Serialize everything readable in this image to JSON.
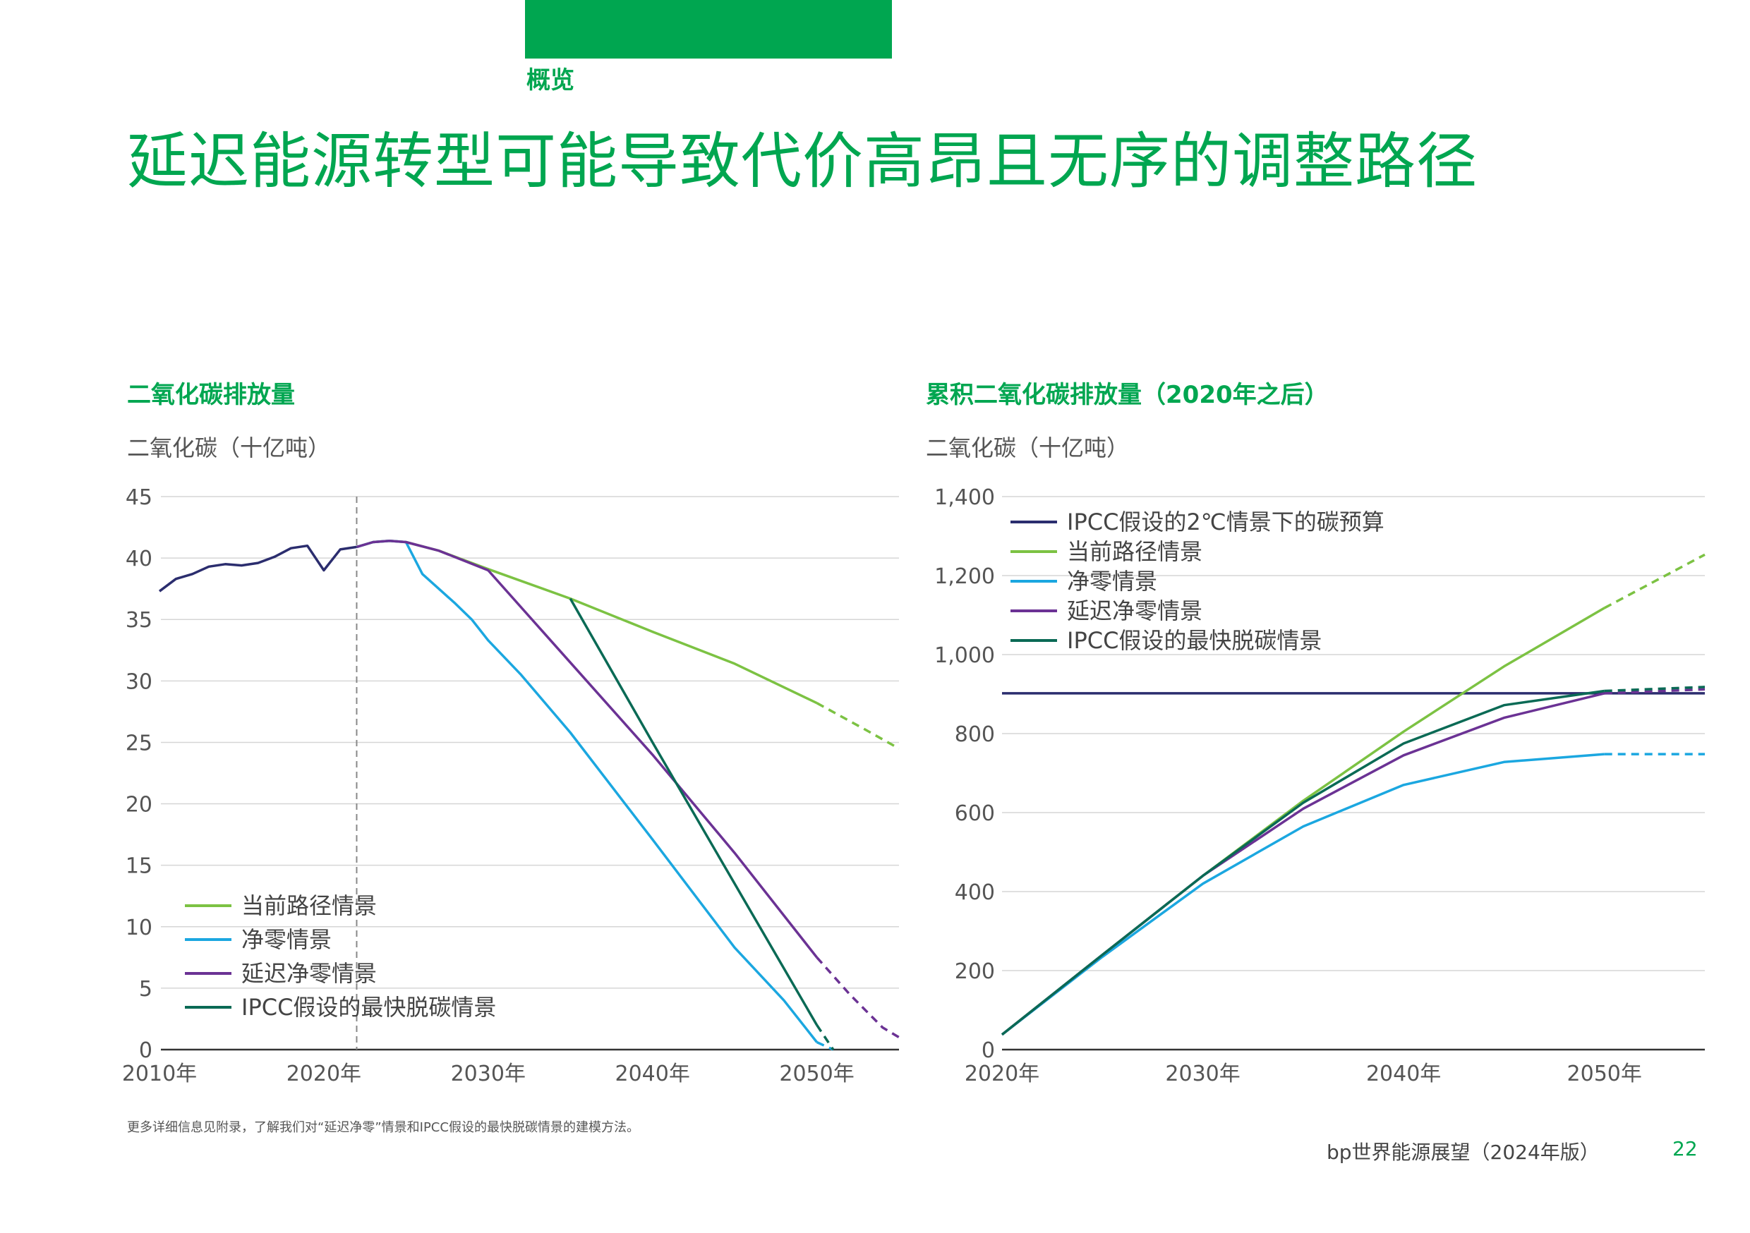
{
  "header": {
    "section": "概览",
    "title": "延迟能源转型可能导致代价高昂且无序的调整路径",
    "accent_color": "#00a650"
  },
  "footer": {
    "note": "更多详细信息见附录，了解我们对“延迟净零”情景和IPCC假设的最快脱碳情景的建模方法。",
    "publication": "bp世界能源展望（2024年版）",
    "page_number": "22"
  },
  "colors": {
    "current": "#7cc243",
    "netzero": "#1ba7e0",
    "delayed": "#6b3294",
    "ipcc_fastest": "#0a6a55",
    "budget": "#2b2d6e",
    "history": "#2b2d6e",
    "grid": "#d6d6d6"
  },
  "chart_data": [
    {
      "type": "line",
      "title": "二氧化碳排放量",
      "ylabel": "二氧化碳（十亿吨）",
      "xlabel": "",
      "xlim": [
        2010,
        2055
      ],
      "ylim": [
        0,
        45
      ],
      "yticks": [
        "0",
        "5",
        "10",
        "15",
        "20",
        "25",
        "30",
        "35",
        "40",
        "45"
      ],
      "xticks": [
        {
          "value": 2010,
          "label": "2010年"
        },
        {
          "value": 2020,
          "label": "2020年"
        },
        {
          "value": 2030,
          "label": "2030年"
        },
        {
          "value": 2040,
          "label": "2040年"
        },
        {
          "value": 2050,
          "label": "2050年"
        }
      ],
      "vline_x": 2022,
      "legend_position": "bottom-left",
      "series": [
        {
          "key": "history",
          "name": "历史",
          "in_legend": false,
          "points": [
            [
              2010,
              37.3
            ],
            [
              2011,
              38.3
            ],
            [
              2012,
              38.7
            ],
            [
              2013,
              39.3
            ],
            [
              2014,
              39.5
            ],
            [
              2015,
              39.4
            ],
            [
              2016,
              39.6
            ],
            [
              2017,
              40.1
            ],
            [
              2018,
              40.8
            ],
            [
              2019,
              41.0
            ],
            [
              2020,
              39.0
            ],
            [
              2021,
              40.7
            ],
            [
              2022,
              40.9
            ]
          ]
        },
        {
          "key": "current",
          "name": "当前路径情景",
          "in_legend": true,
          "points": [
            [
              2022,
              40.9
            ],
            [
              2023,
              41.3
            ],
            [
              2024,
              41.4
            ],
            [
              2025,
              41.3
            ],
            [
              2027,
              40.6
            ],
            [
              2030,
              39.1
            ],
            [
              2035,
              36.7
            ],
            [
              2040,
              34.0
            ],
            [
              2045,
              31.4
            ],
            [
              2050,
              28.2
            ]
          ],
          "dashed": [
            [
              2050,
              28.2
            ],
            [
              2053,
              26.0
            ],
            [
              2055,
              24.5
            ]
          ]
        },
        {
          "key": "netzero",
          "name": "净零情景",
          "in_legend": true,
          "points": [
            [
              2022,
              40.9
            ],
            [
              2023,
              41.3
            ],
            [
              2024,
              41.4
            ],
            [
              2025,
              41.3
            ],
            [
              2026,
              38.7
            ],
            [
              2027,
              37.5
            ],
            [
              2028,
              36.3
            ],
            [
              2029,
              35.0
            ],
            [
              2030,
              33.3
            ],
            [
              2032,
              30.5
            ],
            [
              2035,
              25.8
            ],
            [
              2040,
              17.1
            ],
            [
              2045,
              8.3
            ],
            [
              2048,
              4.0
            ],
            [
              2050,
              0.6
            ]
          ],
          "dashed": [
            [
              2050,
              0.6
            ],
            [
              2051,
              0.0
            ]
          ]
        },
        {
          "key": "delayed",
          "name": "延迟净零情景",
          "in_legend": true,
          "points": [
            [
              2022,
              40.9
            ],
            [
              2023,
              41.3
            ],
            [
              2024,
              41.4
            ],
            [
              2025,
              41.3
            ],
            [
              2027,
              40.6
            ],
            [
              2030,
              39.0
            ],
            [
              2035,
              31.5
            ],
            [
              2040,
              24.0
            ],
            [
              2045,
              16.0
            ],
            [
              2050,
              7.5
            ]
          ],
          "dashed": [
            [
              2050,
              7.5
            ],
            [
              2052,
              4.5
            ],
            [
              2054,
              1.8
            ],
            [
              2055,
              1.0
            ]
          ]
        },
        {
          "key": "ipcc_fastest",
          "name": "IPCC假设的最快脱碳情景",
          "in_legend": true,
          "points": [
            [
              2035,
              36.7
            ],
            [
              2040,
              25.0
            ],
            [
              2045,
              13.5
            ],
            [
              2050,
              2.0
            ]
          ],
          "dashed": [
            [
              2050,
              2.0
            ],
            [
              2051,
              0.0
            ]
          ]
        }
      ]
    },
    {
      "type": "line",
      "title": "累积二氧化碳排放量（2020年之后）",
      "ylabel": "二氧化碳（十亿吨）",
      "xlabel": "",
      "xlim": [
        2020,
        2055
      ],
      "ylim": [
        0,
        1400
      ],
      "yticks": [
        "0",
        "200",
        "400",
        "600",
        "800",
        "1,000",
        "1,200",
        "1,400"
      ],
      "xticks": [
        {
          "value": 2020,
          "label": "2020年"
        },
        {
          "value": 2030,
          "label": "2030年"
        },
        {
          "value": 2040,
          "label": "2040年"
        },
        {
          "value": 2050,
          "label": "2050年"
        }
      ],
      "legend_position": "top-left",
      "series": [
        {
          "key": "budget",
          "name": "IPCC假设的2℃情景下的碳预算",
          "in_legend": true,
          "points": [
            [
              2020,
              902
            ],
            [
              2055,
              902
            ]
          ]
        },
        {
          "key": "current",
          "name": "当前路径情景",
          "in_legend": true,
          "points": [
            [
              2020,
              38
            ],
            [
              2025,
              240
            ],
            [
              2030,
              440
            ],
            [
              2035,
              630
            ],
            [
              2040,
              805
            ],
            [
              2045,
              970
            ],
            [
              2050,
              1118
            ]
          ],
          "dashed": [
            [
              2050,
              1118
            ],
            [
              2055,
              1253
            ]
          ]
        },
        {
          "key": "netzero",
          "name": "净零情景",
          "in_legend": true,
          "points": [
            [
              2020,
              38
            ],
            [
              2025,
              235
            ],
            [
              2030,
              420
            ],
            [
              2035,
              565
            ],
            [
              2040,
              670
            ],
            [
              2045,
              728
            ],
            [
              2050,
              748
            ]
          ],
          "dashed": [
            [
              2050,
              748
            ],
            [
              2055,
              748
            ]
          ]
        },
        {
          "key": "delayed",
          "name": "延迟净零情景",
          "in_legend": true,
          "points": [
            [
              2020,
              38
            ],
            [
              2025,
              240
            ],
            [
              2030,
              440
            ],
            [
              2035,
              610
            ],
            [
              2040,
              745
            ],
            [
              2045,
              840
            ],
            [
              2050,
              902
            ]
          ],
          "dashed": [
            [
              2050,
              902
            ],
            [
              2055,
              912
            ]
          ]
        },
        {
          "key": "ipcc_fastest",
          "name": "IPCC假设的最快脱碳情景",
          "in_legend": true,
          "points": [
            [
              2020,
              38
            ],
            [
              2025,
              240
            ],
            [
              2030,
              440
            ],
            [
              2035,
              625
            ],
            [
              2040,
              775
            ],
            [
              2045,
              872
            ],
            [
              2050,
              908
            ]
          ],
          "dashed": [
            [
              2050,
              908
            ],
            [
              2055,
              918
            ]
          ]
        }
      ]
    }
  ]
}
